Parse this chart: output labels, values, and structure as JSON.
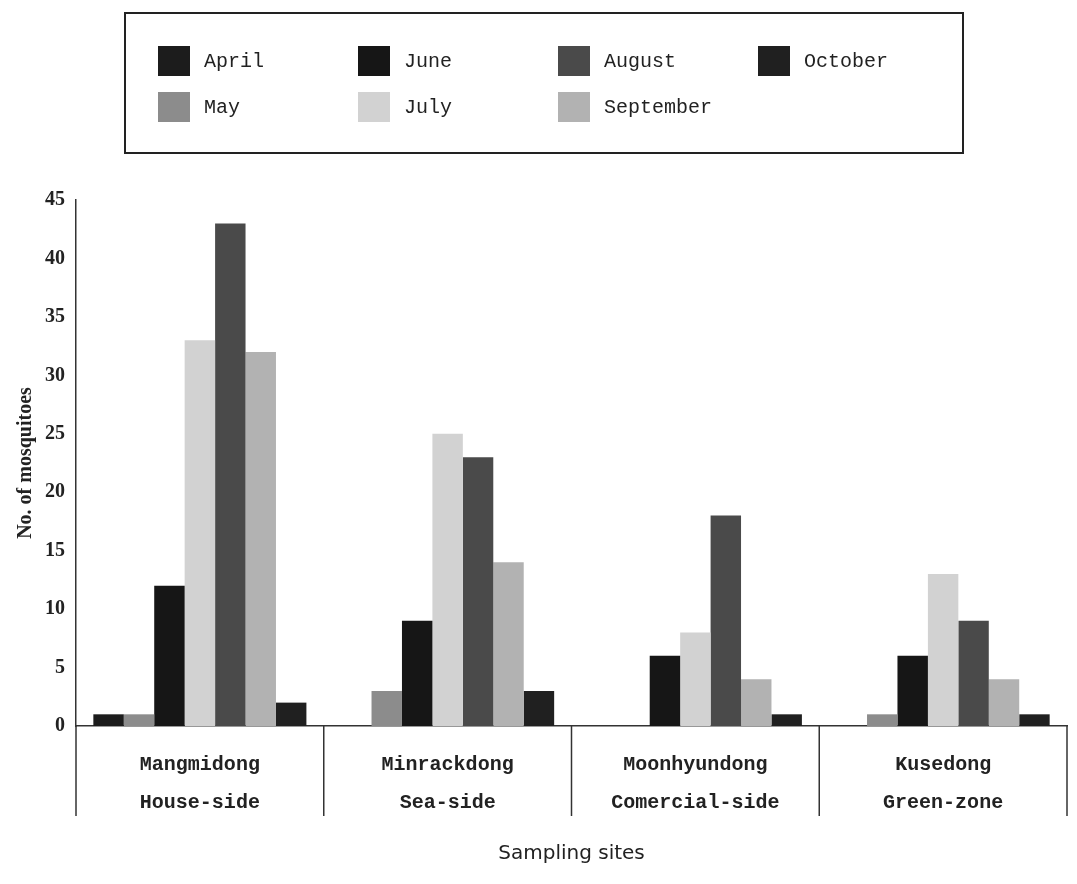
{
  "chart_data": {
    "type": "bar",
    "xlabel": "Sampling sites",
    "ylabel": "No. of mosquitoes",
    "categories": [
      "Mangmidong\nHouse-side",
      "Minrackdong\nSea-side",
      "Moonhyundong\nComercial-side",
      "Kusedong\nGreen-zone"
    ],
    "series": [
      {
        "name": "April",
        "color": "#1c1c1c",
        "values": [
          1,
          0,
          0,
          0
        ]
      },
      {
        "name": "May",
        "color": "#8c8c8c",
        "values": [
          1,
          3,
          0,
          1
        ]
      },
      {
        "name": "June",
        "color": "#161616",
        "values": [
          12,
          9,
          6,
          6
        ]
      },
      {
        "name": "July",
        "color": "#d2d2d2",
        "values": [
          33,
          25,
          8,
          13
        ]
      },
      {
        "name": "August",
        "color": "#4a4a4a",
        "values": [
          43,
          23,
          18,
          9
        ]
      },
      {
        "name": "September",
        "color": "#b2b2b2",
        "values": [
          32,
          14,
          4,
          4
        ]
      },
      {
        "name": "October",
        "color": "#202020",
        "values": [
          2,
          3,
          1,
          1
        ]
      }
    ],
    "ylim": [
      0,
      45
    ],
    "yticks": [
      0,
      5,
      10,
      15,
      20,
      25,
      30,
      35,
      40,
      45
    ],
    "grid": false,
    "legend": "top"
  }
}
